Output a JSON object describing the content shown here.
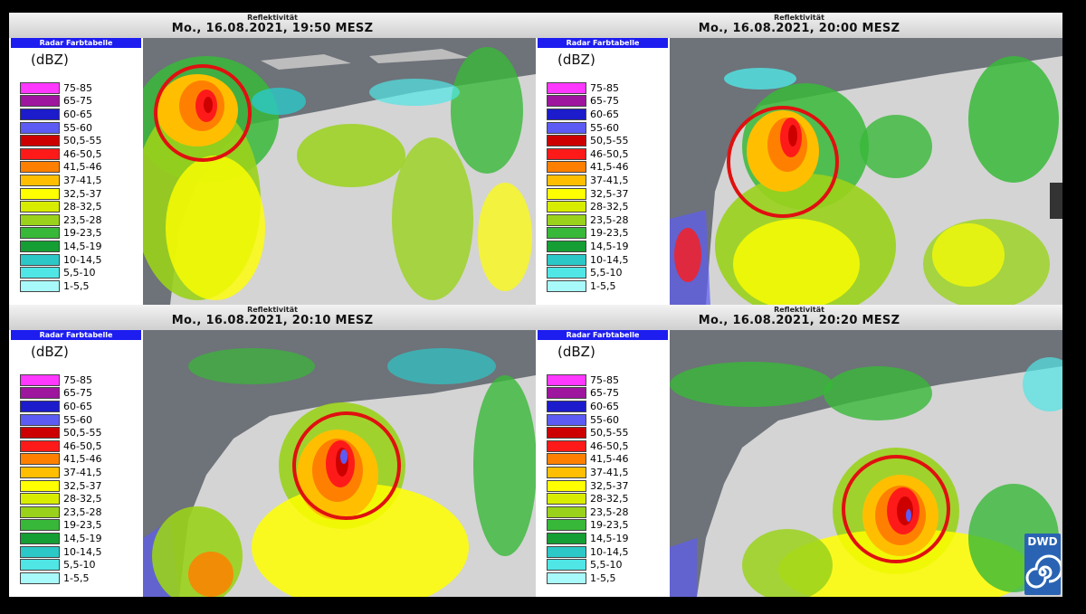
{
  "legend": {
    "header": "Radar Farbtabelle",
    "unit": "(dBZ)",
    "entries": [
      {
        "label": "75-85",
        "color": "#ff38ff"
      },
      {
        "label": "65-75",
        "color": "#9e159e"
      },
      {
        "label": "60-65",
        "color": "#1c1ccc"
      },
      {
        "label": "55-60",
        "color": "#5c5cf4"
      },
      {
        "label": "50,5-55",
        "color": "#cd0000"
      },
      {
        "label": "46-50,5",
        "color": "#ff1a1a"
      },
      {
        "label": "41,5-46",
        "color": "#ff8000"
      },
      {
        "label": "37-41,5",
        "color": "#ffbf00"
      },
      {
        "label": "32,5-37",
        "color": "#ffff00"
      },
      {
        "label": "28-32,5",
        "color": "#d8ec00"
      },
      {
        "label": "23,5-28",
        "color": "#9ad21b"
      },
      {
        "label": "19-23,5",
        "color": "#38b838"
      },
      {
        "label": "14,5-19",
        "color": "#159e33"
      },
      {
        "label": "10-14,5",
        "color": "#2cc8c8"
      },
      {
        "label": "5,5-10",
        "color": "#50e6e6"
      },
      {
        "label": "1-5,5",
        "color": "#a8fafa"
      }
    ]
  },
  "panels": [
    {
      "subtitle": "Reflektivität",
      "title": "Mo., 16.08.2021, 19:50 MESZ"
    },
    {
      "subtitle": "Reflektivität",
      "title": "Mo., 16.08.2021, 20:00 MESZ"
    },
    {
      "subtitle": "Reflektivität",
      "title": "Mo., 16.08.2021, 20:10 MESZ"
    },
    {
      "subtitle": "Reflektivität",
      "title": "Mo., 16.08.2021, 20:20 MESZ"
    }
  ],
  "logo": {
    "text": "DWD"
  },
  "colors": {
    "land": "#d4d4d4",
    "sea": "#6e7279",
    "circle": "#e01010"
  }
}
